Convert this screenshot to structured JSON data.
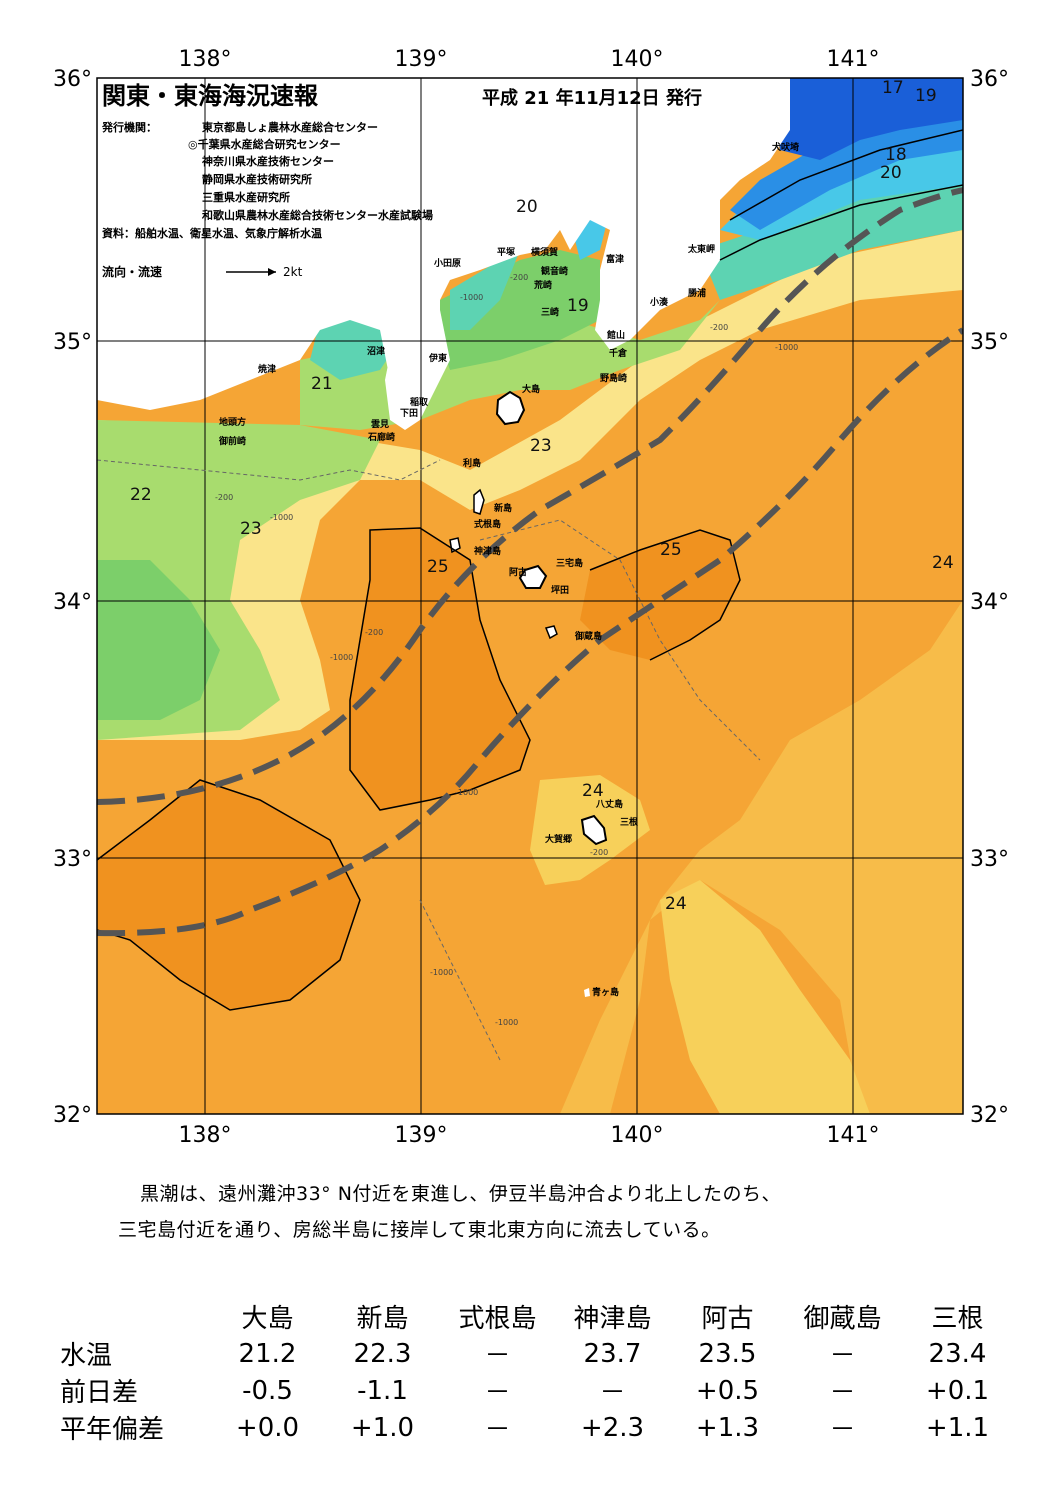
{
  "header": {
    "title": "関東・東海海況速報",
    "date": "平成 21 年11月12日 発行",
    "publisher_label": "発行機関：",
    "publishers": [
      "東京都島しょ農林水産総合センター",
      "◎千葉県水産総合研究センター",
      "神奈川県水産技術センター",
      "静岡県水産技術研究所",
      "三重県水産研究所",
      "和歌山県農林水産総合技術センター水産試験場"
    ],
    "sources": "資料：船舶水温、衛星水温、気象庁解析水温",
    "current_legend": "流向・流速",
    "current_scale": "2kt"
  },
  "axes": {
    "lon_labels": [
      "138°",
      "139°",
      "140°",
      "141°"
    ],
    "lat_labels": [
      "36°",
      "35°",
      "34°",
      "33°",
      "32°"
    ]
  },
  "isotherm_labels": [
    "17",
    "19",
    "18",
    "20",
    "20",
    "19",
    "21",
    "22",
    "23",
    "23",
    "25",
    "25",
    "24",
    "24",
    "24"
  ],
  "depth_labels": [
    "-200",
    "-1000"
  ],
  "places": [
    "犬吠埼",
    "太東岬",
    "勝浦",
    "小湊",
    "富津",
    "横須賀",
    "観音崎",
    "荒崎",
    "三崎",
    "平塚",
    "小田原",
    "館山",
    "千倉",
    "野島崎",
    "沼津",
    "伊東",
    "焼津",
    "稲取",
    "下田",
    "雲見",
    "石廊崎",
    "地頭方",
    "御前崎",
    "大島",
    "利島",
    "新島",
    "式根島",
    "神津島",
    "三宅島",
    "阿古",
    "坪田",
    "御蔵島",
    "八丈島",
    "三根",
    "大賀郷",
    "青ヶ島"
  ],
  "colors": {
    "kuroshio_warm": "#f5a535",
    "kuroshio_core": "#f0921f",
    "water_24": "#f7d05a",
    "water_23": "#fae48a",
    "water_22": "#a8dc6e",
    "water_21": "#7ccf6a",
    "water_20": "#5dd3b2",
    "water_19": "#48c8e8",
    "water_18": "#2a8fe6",
    "water_17": "#1a5fd8",
    "land": "#ffffff",
    "kuroshio_axis": "#555555"
  },
  "summary": {
    "line1": "黒潮は、遠州灘沖33° N付近を東進し、伊豆半島沖合より北上したのち、",
    "line2": "三宅島付近を通り、房総半島に接岸して東北東方向に流去している。"
  },
  "table": {
    "headers": [
      "大島",
      "新島",
      "式根島",
      "神津島",
      "阿古",
      "御蔵島",
      "三根"
    ],
    "rows": [
      {
        "label": "水温",
        "values": [
          "21.2",
          "22.3",
          "－",
          "23.7",
          "23.5",
          "－",
          "23.4"
        ]
      },
      {
        "label": "前日差",
        "values": [
          "-0.5",
          "-1.1",
          "－",
          "－",
          "+0.5",
          "－",
          "+0.1"
        ]
      },
      {
        "label": "平年偏差",
        "values": [
          "+0.0",
          "+1.0",
          "－",
          "+2.3",
          "+1.3",
          "－",
          "+1.1"
        ]
      }
    ]
  }
}
